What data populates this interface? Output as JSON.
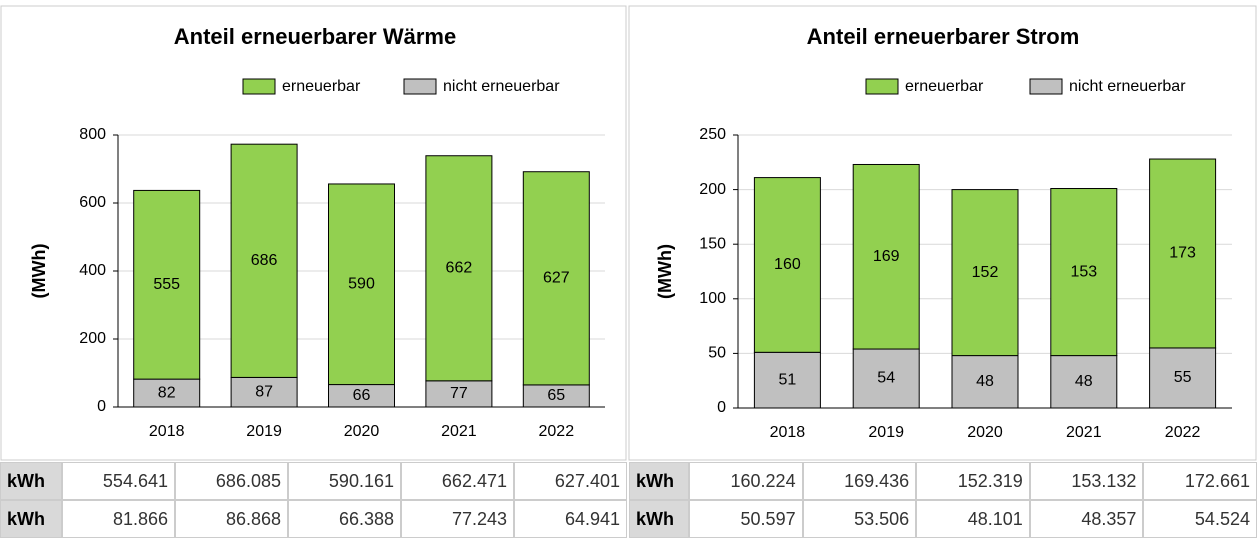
{
  "chart_data": [
    {
      "type": "bar",
      "stacked": true,
      "title": "Anteil erneuerbarer Wärme",
      "ylabel": "(MWh)",
      "categories": [
        "2018",
        "2019",
        "2020",
        "2021",
        "2022"
      ],
      "series": [
        {
          "name": "erneuerbar",
          "color": "#92d050",
          "values": [
            555,
            686,
            590,
            662,
            627
          ]
        },
        {
          "name": "nicht erneuerbar",
          "color": "#c0c0c0",
          "values": [
            82,
            87,
            66,
            77,
            65
          ]
        }
      ],
      "ylim": [
        0,
        800
      ],
      "yticks": [
        0,
        200,
        400,
        600,
        800
      ],
      "grid": true,
      "legend": "top-right"
    },
    {
      "type": "bar",
      "stacked": true,
      "title": "Anteil erneuerbarer Strom",
      "ylabel": "(MWh)",
      "categories": [
        "2018",
        "2019",
        "2020",
        "2021",
        "2022"
      ],
      "series": [
        {
          "name": "erneuerbar",
          "color": "#92d050",
          "values": [
            160,
            169,
            152,
            153,
            173
          ]
        },
        {
          "name": "nicht erneuerbar",
          "color": "#c0c0c0",
          "values": [
            51,
            54,
            48,
            48,
            55
          ]
        }
      ],
      "ylim": [
        0,
        250
      ],
      "yticks": [
        0,
        50,
        100,
        150,
        200,
        250
      ],
      "grid": true,
      "legend": "top-right"
    }
  ],
  "tables": [
    {
      "rows": [
        [
          "kWh",
          "554.641",
          "686.085",
          "590.161",
          "662.471",
          "627.401"
        ],
        [
          "kWh",
          "81.866",
          "86.868",
          "66.388",
          "77.243",
          "64.941"
        ]
      ]
    },
    {
      "rows": [
        [
          "kWh",
          "160.224",
          "169.436",
          "152.319",
          "153.132",
          "172.661"
        ],
        [
          "kWh",
          "50.597",
          "53.506",
          "48.101",
          "48.357",
          "54.524"
        ]
      ]
    }
  ]
}
